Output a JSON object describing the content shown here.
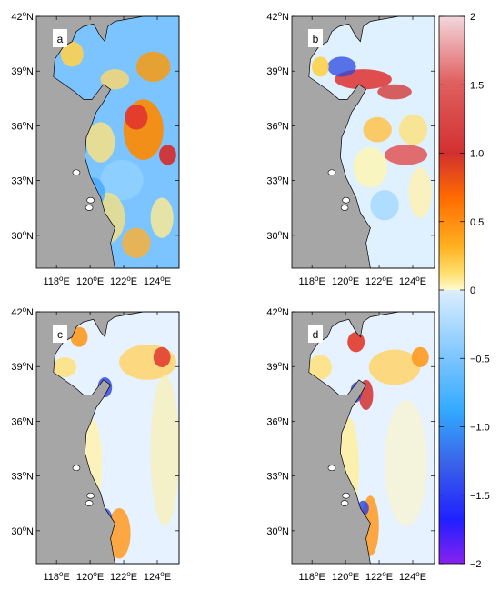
{
  "figure": {
    "panels": [
      {
        "label": "a",
        "pattern": "strong-mixed"
      },
      {
        "label": "b",
        "pattern": "noisy-streaks"
      },
      {
        "label": "c",
        "pattern": "coastal-positive"
      },
      {
        "label": "d",
        "pattern": "coastal-positive-strong"
      }
    ],
    "lat_ticks": [
      "42",
      "39",
      "36",
      "33",
      "30"
    ],
    "lat_suffix": "N",
    "lon_ticks": [
      "118",
      "120",
      "122",
      "124"
    ],
    "lon_suffix": "E",
    "degree_symbol": "o",
    "lat_range": [
      28.2,
      42.0
    ],
    "lon_range": [
      116.8,
      125.3
    ],
    "colorbar": {
      "ticks": [
        "2",
        "1.5",
        "1.0",
        "0.5",
        "0",
        "−0.5",
        "−1.0",
        "−1.5",
        "−2"
      ],
      "tick_values": [
        2,
        1.5,
        1.0,
        0.5,
        0,
        -0.5,
        -1.0,
        -1.5,
        -2
      ],
      "range": [
        -2,
        2
      ],
      "colors": [
        "#f3d7dd",
        "#d63a3a",
        "#ff8800",
        "#ffd23a",
        "#fffcd0",
        "#dcefff",
        "#33aaff",
        "#3858e6",
        "#2020ff",
        "#8822ee"
      ]
    },
    "land_color": "#a6a6a6"
  }
}
